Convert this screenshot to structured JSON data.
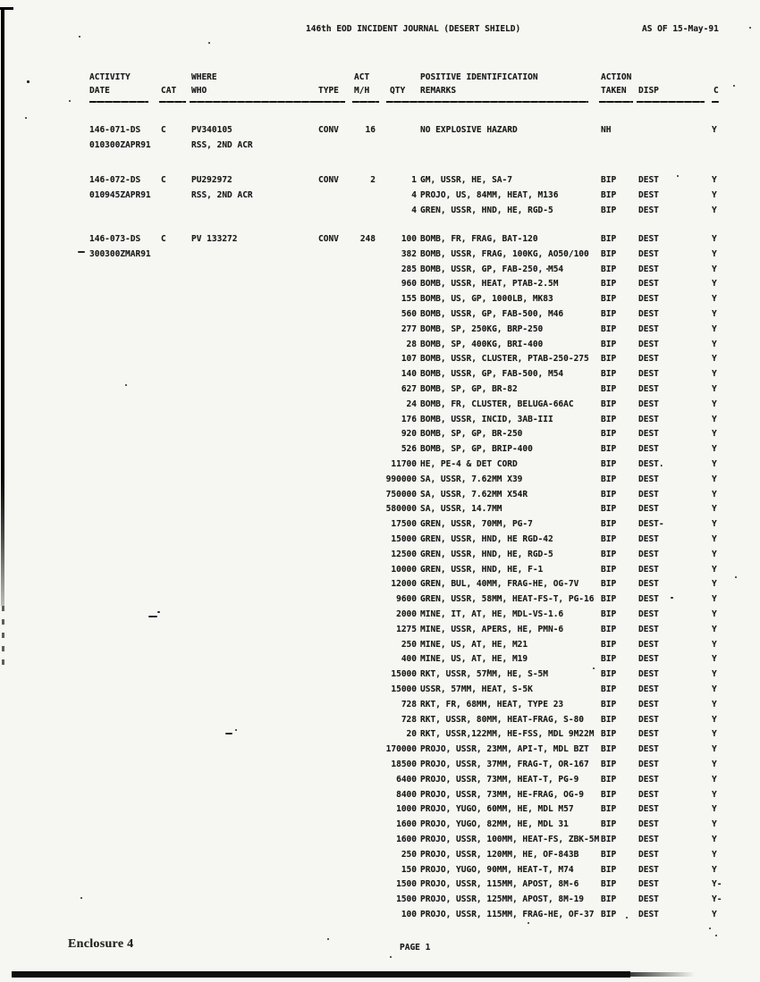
{
  "page": {
    "title": "146th EOD INCIDENT JOURNAL (DESERT SHIELD)",
    "as_of": "AS OF 15-May-91",
    "footer_left": "Enclosure 4",
    "footer_center": "PAGE 1"
  },
  "table": {
    "header_row1": {
      "activity": "ACTIVITY",
      "where": "WHERE",
      "act": "ACT",
      "positive_identification": "POSITIVE IDENTIFICATION",
      "action": "ACTION"
    },
    "header_row2": {
      "date": "DATE",
      "cat": "CAT",
      "who": "WHO",
      "type": "TYPE",
      "mh": "M/H",
      "qty": "QTY",
      "remarks": "REMARKS",
      "taken": "TAKEN",
      "disp": "DISP",
      "c": "C"
    },
    "entries": [
      {
        "id": "146-071-DS",
        "date": "010300ZAPR91",
        "cat": "C",
        "who": "PV340105",
        "unit": "RSS, 2ND ACR",
        "type": "CONV",
        "act_mh": "16",
        "lines": [
          {
            "qty": "",
            "remark": "NO EXPLOSIVE HAZARD",
            "action": "NH",
            "disp": "",
            "c": "Y"
          }
        ]
      },
      {
        "id": "146-072-DS",
        "date": "010945ZAPR91",
        "cat": "C",
        "who": "PU292972",
        "unit": "RSS, 2ND ACR",
        "type": "CONV",
        "act_mh": "2",
        "lines": [
          {
            "qty": "1",
            "remark": "GM, USSR, HE, SA-7",
            "action": "BIP",
            "disp": "DEST",
            "c": "Y"
          },
          {
            "qty": "4",
            "remark": "PROJO, US, 84MM, HEAT, M136",
            "action": "BIP",
            "disp": "DEST",
            "c": "Y"
          },
          {
            "qty": "4",
            "remark": "GREN, USSR, HND, HE, RGD-5",
            "action": "BIP",
            "disp": "DEST",
            "c": "Y"
          }
        ]
      },
      {
        "id": "146-073-DS",
        "date": "300300ZMAR91",
        "cat": "C",
        "who": "PV 133272",
        "unit": "",
        "type": "CONV",
        "act_mh": "248",
        "lines": [
          {
            "qty": "100",
            "remark": "BOMB, FR, FRAG, BAT-120",
            "action": "BIP",
            "disp": "DEST",
            "c": "Y"
          },
          {
            "qty": "382",
            "remark": "BOMB, USSR, FRAG, 100KG, AO50/100",
            "action": "BIP",
            "disp": "DEST",
            "c": "Y"
          },
          {
            "qty": "285",
            "remark": "BOMB, USSR, GP, FAB-250, M54",
            "action": "BIP",
            "disp": "DEST",
            "c": "Y"
          },
          {
            "qty": "960",
            "remark": "BOMB, USSR, HEAT, PTAB-2.5M",
            "action": "BIP",
            "disp": "DEST",
            "c": "Y"
          },
          {
            "qty": "155",
            "remark": "BOMB, US, GP, 1000LB, MK83",
            "action": "BIP",
            "disp": "DEST",
            "c": "Y"
          },
          {
            "qty": "560",
            "remark": "BOMB, USSR, GP, FAB-500, M46",
            "action": "BIP",
            "disp": "DEST",
            "c": "Y"
          },
          {
            "qty": "277",
            "remark": "BOMB, SP, 250KG, BRP-250",
            "action": "BIP",
            "disp": "DEST",
            "c": "Y"
          },
          {
            "qty": "28",
            "remark": "BOMB, SP, 400KG, BRI-400",
            "action": "BIP",
            "disp": "DEST",
            "c": "Y"
          },
          {
            "qty": "107",
            "remark": "BOMB, USSR, CLUSTER, PTAB-250-275",
            "action": "BIP",
            "disp": "DEST",
            "c": "Y"
          },
          {
            "qty": "140",
            "remark": "BOMB, USSR, GP, FAB-500, M54",
            "action": "BIP",
            "disp": "DEST",
            "c": "Y"
          },
          {
            "qty": "627",
            "remark": "BOMB, SP, GP, BR-82",
            "action": "BIP",
            "disp": "DEST",
            "c": "Y"
          },
          {
            "qty": "24",
            "remark": "BOMB, FR, CLUSTER, BELUGA-66AC",
            "action": "BIP",
            "disp": "DEST",
            "c": "Y"
          },
          {
            "qty": "176",
            "remark": "BOMB, USSR, INCID, 3AB-III",
            "action": "BIP",
            "disp": "DEST",
            "c": "Y"
          },
          {
            "qty": "920",
            "remark": "BOMB, SP, GP, BR-250",
            "action": "BIP",
            "disp": "DEST",
            "c": "Y"
          },
          {
            "qty": "526",
            "remark": "BOMB, SP, GP, BRIP-400",
            "action": "BIP",
            "disp": "DEST",
            "c": "Y"
          },
          {
            "qty": "11700",
            "remark": "HE, PE-4 & DET CORD",
            "action": "BIP",
            "disp": "DEST.",
            "c": "Y"
          },
          {
            "qty": "990000",
            "remark": "SA, USSR, 7.62MM X39",
            "action": "BIP",
            "disp": "DEST",
            "c": "Y"
          },
          {
            "qty": "750000",
            "remark": "SA, USSR, 7.62MM X54R",
            "action": "BIP",
            "disp": "DEST",
            "c": "Y"
          },
          {
            "qty": "580000",
            "remark": "SA, USSR, 14.7MM",
            "action": "BIP",
            "disp": "DEST",
            "c": "Y"
          },
          {
            "qty": "17500",
            "remark": "GREN, USSR, 70MM, PG-7",
            "action": "BIP",
            "disp": "DEST-",
            "c": "Y"
          },
          {
            "qty": "15000",
            "remark": "GREN, USSR, HND, HE RGD-42",
            "action": "BIP",
            "disp": "DEST",
            "c": "Y"
          },
          {
            "qty": "12500",
            "remark": "GREN, USSR, HND, HE, RGD-5",
            "action": "BIP",
            "disp": "DEST",
            "c": "Y"
          },
          {
            "qty": "10000",
            "remark": "GREN, USSR, HND, HE, F-1",
            "action": "BIP",
            "disp": "DEST",
            "c": "Y"
          },
          {
            "qty": "12000",
            "remark": "GREN, BUL, 40MM, FRAG-HE, OG-7V",
            "action": "BIP",
            "disp": "DEST",
            "c": "Y"
          },
          {
            "qty": "9600",
            "remark": "GREN, USSR, 58MM, HEAT-FS-T, PG-16",
            "action": "BIP",
            "disp": "DEST",
            "c": "Y"
          },
          {
            "qty": "2000",
            "remark": "MINE, IT, AT, HE, MDL-VS-1.6",
            "action": "BIP",
            "disp": "DEST",
            "c": "Y"
          },
          {
            "qty": "1275",
            "remark": "MINE, USSR, APERS, HE, PMN-6",
            "action": "BIP",
            "disp": "DEST",
            "c": "Y"
          },
          {
            "qty": "250",
            "remark": "MINE, US, AT, HE, M21",
            "action": "BIP",
            "disp": "DEST",
            "c": "Y"
          },
          {
            "qty": "400",
            "remark": "MINE, US, AT, HE, M19",
            "action": "BIP",
            "disp": "DEST",
            "c": "Y"
          },
          {
            "qty": "15000",
            "remark": "RKT, USSR, 57MM, HE, S-5M",
            "action": "BIP",
            "disp": "DEST",
            "c": "Y"
          },
          {
            "qty": "15000",
            "remark": "USSR, 57MM, HEAT, S-5K",
            "action": "BIP",
            "disp": "DEST",
            "c": "Y"
          },
          {
            "qty": "728",
            "remark": "RKT, FR, 68MM, HEAT, TYPE 23",
            "action": "BIP",
            "disp": "DEST",
            "c": "Y"
          },
          {
            "qty": "728",
            "remark": "RKT, USSR, 80MM, HEAT-FRAG, S-80",
            "action": "BIP",
            "disp": "DEST",
            "c": "Y"
          },
          {
            "qty": "20",
            "remark": "RKT, USSR,122MM, HE-FSS, MDL 9M22M",
            "action": "BIP",
            "disp": "DEST",
            "c": "Y"
          },
          {
            "qty": "170000",
            "remark": "PROJO, USSR, 23MM, API-T, MDL BZT",
            "action": "BIP",
            "disp": "DEST",
            "c": "Y"
          },
          {
            "qty": "18500",
            "remark": "PROJO, USSR, 37MM, FRAG-T, OR-167",
            "action": "BIP",
            "disp": "DEST",
            "c": "Y"
          },
          {
            "qty": "6400",
            "remark": "PROJO, USSR, 73MM, HEAT-T, PG-9",
            "action": "BIP",
            "disp": "DEST",
            "c": "Y"
          },
          {
            "qty": "8400",
            "remark": "PROJO, USSR, 73MM, HE-FRAG, OG-9",
            "action": "BIP",
            "disp": "DEST",
            "c": "Y"
          },
          {
            "qty": "1000",
            "remark": "PROJO, YUGO, 60MM, HE, MDL M57",
            "action": "BIP",
            "disp": "DEST",
            "c": "Y"
          },
          {
            "qty": "1600",
            "remark": "PROJO, YUGO, 82MM, HE, MDL 31",
            "action": "BIP",
            "disp": "DEST",
            "c": "Y"
          },
          {
            "qty": "1600",
            "remark": "PROJO, USSR, 100MM, HEAT-FS, ZBK-5M",
            "action": "BIP",
            "disp": "DEST",
            "c": "Y"
          },
          {
            "qty": "250",
            "remark": "PROJO, USSR, 120MM, HE, OF-843B",
            "action": "BIP",
            "disp": "DEST",
            "c": "Y"
          },
          {
            "qty": "150",
            "remark": "PROJO, YUGO, 90MM, HEAT-T, M74",
            "action": "BIP",
            "disp": "DEST",
            "c": "Y"
          },
          {
            "qty": "1500",
            "remark": "PROJO, USSR, 115MM, APOST, 8M-6",
            "action": "BIP",
            "disp": "DEST",
            "c": "Y-"
          },
          {
            "qty": "1500",
            "remark": "PROJO, USSR, 125MM, APOST, 8M-19",
            "action": "BIP",
            "disp": "DEST",
            "c": "Y-"
          },
          {
            "qty": "100",
            "remark": "PROJO, USSR, 115MM, FRAG-HE, OF-37",
            "action": "BIP",
            "disp": "DEST",
            "c": "Y"
          }
        ]
      }
    ]
  }
}
